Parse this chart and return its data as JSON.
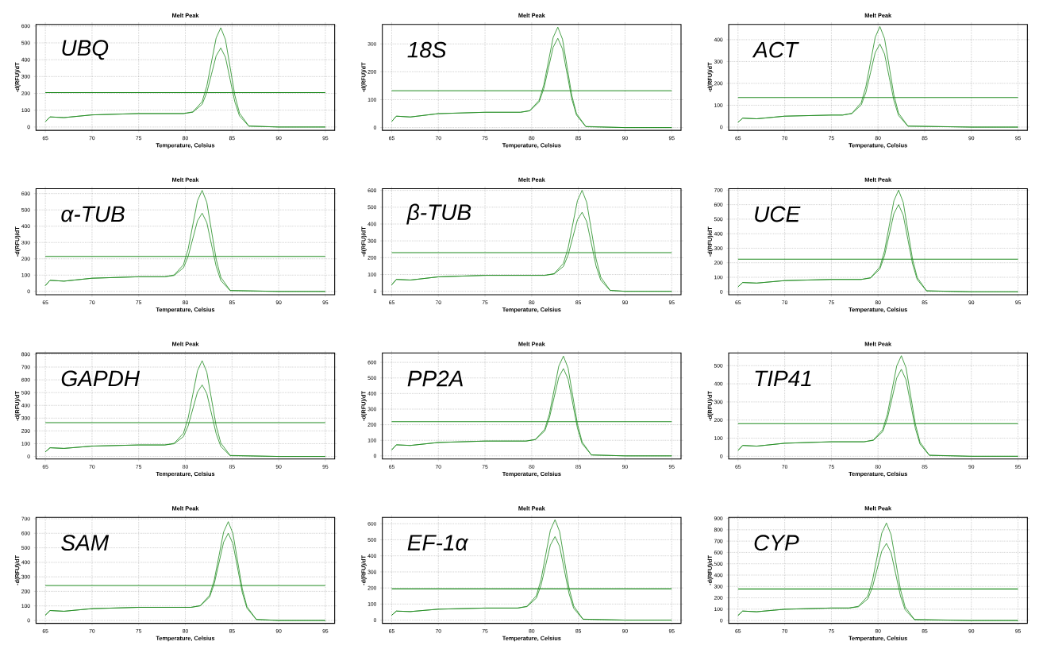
{
  "chart_data": [
    {
      "type": "line",
      "title": "Melt Peak",
      "xlabel": "Temperature, Celsius",
      "ylabel": "-d(RFU)/dT",
      "annotations": [
        "UBQ"
      ],
      "x": [
        65,
        65.5,
        67,
        70,
        75,
        79.8,
        80.8,
        81.8,
        82.3,
        82.8,
        83.3,
        83.8,
        84.3,
        84.8,
        85.3,
        85.8,
        86.8,
        90,
        95
      ],
      "xlim": [
        64,
        96
      ],
      "xticks": [
        65,
        70,
        75,
        80,
        85,
        90,
        95
      ],
      "ylim": [
        -20,
        610
      ],
      "yticks": [
        0,
        100,
        200,
        300,
        400,
        500,
        600
      ],
      "grid": true,
      "ref_lines": [
        {
          "axis": "y",
          "value": 205,
          "color": "#1e8a1e"
        }
      ],
      "series": [
        {
          "color": "#1e8a1e",
          "values": [
            32,
            60,
            56,
            72,
            80,
            80,
            90,
            151,
            243,
            386,
            529,
            590,
            519,
            354,
            189,
            83,
            6,
            0,
            0
          ]
        },
        {
          "color": "#1e8a1e",
          "values": [
            32,
            60,
            56,
            72,
            80,
            80,
            88,
            135,
            205,
            314,
            423,
            470,
            414,
            282,
            150,
            66,
            5,
            0,
            0
          ]
        }
      ]
    },
    {
      "type": "line",
      "title": "Melt Peak",
      "xlabel": "Temperature, Celsius",
      "ylabel": "-d(RFU)/dT",
      "annotations": [
        "18S"
      ],
      "x": [
        65,
        65.5,
        67,
        70,
        75,
        78.8,
        79.8,
        80.8,
        81.3,
        81.8,
        82.3,
        82.8,
        83.3,
        83.8,
        84.3,
        84.8,
        85.8,
        90,
        95
      ],
      "xlim": [
        64,
        96
      ],
      "xticks": [
        65,
        70,
        75,
        80,
        85,
        90,
        95
      ],
      "ylim": [
        -10,
        370
      ],
      "yticks": [
        0,
        100,
        200,
        300
      ],
      "grid": true,
      "ref_lines": [
        {
          "axis": "y",
          "value": 132,
          "color": "#1e8a1e"
        }
      ],
      "series": [
        {
          "color": "#1e8a1e",
          "values": [
            22,
            41,
            38,
            50,
            55,
            55,
            61,
            98,
            153,
            238,
            323,
            360,
            317,
            216,
            115,
            50,
            4,
            0,
            0
          ]
        },
        {
          "color": "#1e8a1e",
          "values": [
            22,
            41,
            38,
            50,
            55,
            55,
            60,
            92,
            140,
            214,
            288,
            320,
            282,
            192,
            102,
            45,
            3,
            0,
            0
          ]
        }
      ]
    },
    {
      "type": "line",
      "title": "Melt Peak",
      "xlabel": "Temperature, Celsius",
      "ylabel": "-d(RFU)/dT",
      "annotations": [
        "ACT"
      ],
      "x": [
        65,
        65.5,
        67,
        70,
        75,
        76.2,
        77.2,
        78.2,
        78.7,
        79.2,
        79.7,
        80.2,
        80.7,
        81.2,
        81.7,
        82.2,
        83.2,
        90,
        95
      ],
      "xlim": [
        64,
        96
      ],
      "xticks": [
        65,
        70,
        75,
        80,
        85,
        90,
        95
      ],
      "ylim": [
        -15,
        470
      ],
      "yticks": [
        0,
        100,
        200,
        300,
        400
      ],
      "grid": true,
      "ref_lines": [
        {
          "axis": "y",
          "value": 135,
          "color": "#1e8a1e"
        }
      ],
      "series": [
        {
          "color": "#1e8a1e",
          "values": [
            22,
            41,
            38,
            50,
            55,
            55,
            63,
            112,
            185,
            298,
            411,
            460,
            405,
            276,
            147,
            64,
            5,
            0,
            0
          ]
        },
        {
          "color": "#1e8a1e",
          "values": [
            22,
            41,
            38,
            50,
            55,
            55,
            62,
            101,
            159,
            250,
            341,
            380,
            334,
            228,
            122,
            53,
            4,
            0,
            0
          ]
        }
      ]
    },
    {
      "type": "line",
      "title": "Melt Peak",
      "xlabel": "Temperature, Celsius",
      "ylabel": "-d(RFU)/dT",
      "annotations": [
        "α-TUB"
      ],
      "x": [
        65,
        65.5,
        67,
        70,
        75,
        77.8,
        78.8,
        79.8,
        80.3,
        80.8,
        81.3,
        81.8,
        82.3,
        82.8,
        83.3,
        83.8,
        84.8,
        90,
        95
      ],
      "xlim": [
        64,
        96
      ],
      "xticks": [
        65,
        70,
        75,
        80,
        85,
        90,
        95
      ],
      "ylim": [
        -20,
        630
      ],
      "yticks": [
        0,
        100,
        200,
        300,
        400,
        500,
        600
      ],
      "grid": true,
      "ref_lines": [
        {
          "axis": "y",
          "value": 215,
          "color": "#1e8a1e"
        }
      ],
      "series": [
        {
          "color": "#1e8a1e",
          "values": [
            36,
            68,
            63,
            81,
            90,
            90,
            101,
            164,
            260,
            408,
            556,
            620,
            546,
            372,
            198,
            87,
            6,
            0,
            0
          ]
        },
        {
          "color": "#1e8a1e",
          "values": [
            36,
            68,
            63,
            81,
            90,
            90,
            98,
            145,
            215,
            324,
            433,
            480,
            422,
            288,
            154,
            67,
            5,
            0,
            0
          ]
        }
      ]
    },
    {
      "type": "line",
      "title": "Melt Peak",
      "xlabel": "Temperature, Celsius",
      "ylabel": "-d(RFU)/dT",
      "annotations": [
        "β-TUB"
      ],
      "x": [
        65,
        65.5,
        67,
        70,
        75,
        81.4,
        82.4,
        83.4,
        83.9,
        84.4,
        84.9,
        85.4,
        85.9,
        86.4,
        86.9,
        87.4,
        88.4,
        90,
        95
      ],
      "xlim": [
        64,
        96
      ],
      "xticks": [
        65,
        70,
        75,
        80,
        85,
        90,
        95
      ],
      "ylim": [
        -20,
        610
      ],
      "yticks": [
        0,
        100,
        200,
        300,
        400,
        500,
        600
      ],
      "grid": true,
      "ref_lines": [
        {
          "axis": "y",
          "value": 230,
          "color": "#1e8a1e"
        }
      ],
      "series": [
        {
          "color": "#1e8a1e",
          "values": [
            38,
            71,
            67,
            86,
            95,
            95,
            105,
            166,
            257,
            398,
            539,
            600,
            528,
            360,
            192,
            84,
            6,
            0,
            0
          ]
        },
        {
          "color": "#1e8a1e",
          "values": [
            38,
            71,
            67,
            86,
            95,
            95,
            103,
            148,
            215,
            320,
            425,
            470,
            414,
            282,
            150,
            66,
            5,
            0,
            0
          ]
        }
      ]
    },
    {
      "type": "line",
      "title": "Melt Peak",
      "xlabel": "Temperature, Celsius",
      "ylabel": "-d(RFU)/dT",
      "annotations": [
        "UCE"
      ],
      "x": [
        65,
        65.5,
        67,
        70,
        75,
        78.2,
        79.2,
        80.2,
        80.7,
        81.2,
        81.7,
        82.2,
        82.7,
        83.2,
        83.7,
        84.2,
        85.2,
        90,
        95
      ],
      "xlim": [
        64,
        96
      ],
      "xticks": [
        65,
        70,
        75,
        80,
        85,
        90,
        95
      ],
      "ylim": [
        -20,
        710
      ],
      "yticks": [
        0,
        100,
        200,
        300,
        400,
        500,
        600,
        700
      ],
      "grid": true,
      "ref_lines": [
        {
          "axis": "y",
          "value": 225,
          "color": "#1e8a1e"
        }
      ],
      "series": [
        {
          "color": "#1e8a1e",
          "values": [
            34,
            64,
            60,
            77,
            85,
            85,
            97,
            171,
            282,
            454,
            626,
            700,
            616,
            420,
            224,
            98,
            7,
            0,
            0
          ]
        },
        {
          "color": "#1e8a1e",
          "values": [
            34,
            64,
            60,
            77,
            85,
            85,
            95,
            157,
            250,
            394,
            538,
            600,
            528,
            360,
            192,
            84,
            6,
            0,
            0
          ]
        }
      ]
    },
    {
      "type": "line",
      "title": "Melt Peak",
      "xlabel": "Temperature, Celsius",
      "ylabel": "-d(RFU)/dT",
      "annotations": [
        "GAPDH"
      ],
      "x": [
        65,
        65.5,
        67,
        70,
        75,
        77.8,
        78.8,
        79.8,
        80.3,
        80.8,
        81.3,
        81.8,
        82.3,
        82.8,
        83.3,
        83.8,
        84.8,
        90,
        95
      ],
      "xlim": [
        64,
        96
      ],
      "xticks": [
        65,
        70,
        75,
        80,
        85,
        90,
        95
      ],
      "ylim": [
        -20,
        810
      ],
      "yticks": [
        0,
        100,
        200,
        300,
        400,
        500,
        600,
        700,
        800
      ],
      "grid": true,
      "ref_lines": [
        {
          "axis": "y",
          "value": 265,
          "color": "#1e8a1e"
        }
      ],
      "series": [
        {
          "color": "#1e8a1e",
          "values": [
            36,
            68,
            63,
            81,
            90,
            90,
            103,
            182,
            301,
            486,
            671,
            750,
            660,
            450,
            240,
            105,
            8,
            0,
            0
          ]
        },
        {
          "color": "#1e8a1e",
          "values": [
            36,
            68,
            63,
            81,
            90,
            90,
            99,
            156,
            240,
            372,
            504,
            560,
            493,
            336,
            179,
            78,
            6,
            0,
            0
          ]
        }
      ]
    },
    {
      "type": "line",
      "title": "Melt Peak",
      "xlabel": "Temperature, Celsius",
      "ylabel": "-d(RFU)/dT",
      "annotations": [
        "PP2A"
      ],
      "x": [
        65,
        65.5,
        67,
        70,
        75,
        79.4,
        80.4,
        81.4,
        81.9,
        82.4,
        82.9,
        83.4,
        83.9,
        84.4,
        84.9,
        85.4,
        86.4,
        90,
        95
      ],
      "xlim": [
        64,
        96
      ],
      "xticks": [
        65,
        70,
        75,
        80,
        85,
        90,
        95
      ],
      "ylim": [
        -20,
        660
      ],
      "yticks": [
        0,
        100,
        200,
        300,
        400,
        500,
        600
      ],
      "grid": true,
      "ref_lines": [
        {
          "axis": "y",
          "value": 220,
          "color": "#1e8a1e"
        }
      ],
      "series": [
        {
          "color": "#1e8a1e",
          "values": [
            38,
            71,
            67,
            86,
            95,
            95,
            106,
            171,
            269,
            422,
            575,
            640,
            563,
            384,
            205,
            90,
            6,
            0,
            0
          ]
        },
        {
          "color": "#1e8a1e",
          "values": [
            38,
            71,
            67,
            86,
            95,
            95,
            104,
            160,
            244,
            374,
            504,
            560,
            493,
            336,
            179,
            78,
            6,
            0,
            0
          ]
        }
      ]
    },
    {
      "type": "line",
      "title": "Melt Peak",
      "xlabel": "Temperature, Celsius",
      "ylabel": "-d(RFU)/dT",
      "annotations": [
        "TIP41"
      ],
      "x": [
        65,
        65.5,
        67,
        70,
        75,
        78.5,
        79.5,
        80.5,
        81,
        81.5,
        82,
        82.5,
        83,
        83.5,
        84,
        84.5,
        85.5,
        90,
        95
      ],
      "xlim": [
        64,
        96
      ],
      "xticks": [
        65,
        70,
        75,
        80,
        85,
        90,
        95
      ],
      "ylim": [
        -15,
        570
      ],
      "yticks": [
        0,
        100,
        200,
        300,
        400,
        500
      ],
      "grid": true,
      "ref_lines": [
        {
          "axis": "y",
          "value": 180,
          "color": "#1e8a1e"
        }
      ],
      "series": [
        {
          "color": "#1e8a1e",
          "values": [
            32,
            60,
            56,
            72,
            80,
            80,
            90,
            147,
            232,
            365,
            498,
            555,
            488,
            333,
            178,
            78,
            6,
            0,
            0
          ]
        },
        {
          "color": "#1e8a1e",
          "values": [
            32,
            60,
            56,
            72,
            80,
            80,
            88,
            136,
            208,
            320,
            432,
            480,
            422,
            288,
            154,
            67,
            5,
            0,
            0
          ]
        }
      ]
    },
    {
      "type": "line",
      "title": "Melt Peak",
      "xlabel": "Temperature, Celsius",
      "ylabel": "-d(RFU)/dT",
      "annotations": [
        "SAM"
      ],
      "x": [
        65,
        65.5,
        67,
        70,
        75,
        80.6,
        81.6,
        82.6,
        83.1,
        83.6,
        84.1,
        84.6,
        85.1,
        85.6,
        86.1,
        86.6,
        87.6,
        90,
        95
      ],
      "xlim": [
        64,
        96
      ],
      "xticks": [
        65,
        70,
        75,
        80,
        85,
        90,
        95
      ],
      "ylim": [
        -20,
        710
      ],
      "yticks": [
        0,
        100,
        200,
        300,
        400,
        500,
        600,
        700
      ],
      "grid": true,
      "ref_lines": [
        {
          "axis": "y",
          "value": 240,
          "color": "#1e8a1e"
        }
      ],
      "series": [
        {
          "color": "#1e8a1e",
          "values": [
            36,
            68,
            63,
            81,
            90,
            90,
            102,
            173,
            279,
            444,
            609,
            680,
            598,
            408,
            218,
            95,
            7,
            0,
            0
          ]
        },
        {
          "color": "#1e8a1e",
          "values": [
            36,
            68,
            63,
            81,
            90,
            90,
            100,
            161,
            253,
            396,
            539,
            600,
            528,
            360,
            192,
            84,
            6,
            0,
            0
          ]
        }
      ]
    },
    {
      "type": "line",
      "title": "Melt Peak",
      "xlabel": "Temperature, Celsius",
      "ylabel": "-d(RFU)/dT",
      "annotations": [
        "EF-1α"
      ],
      "x": [
        65,
        65.5,
        67,
        70,
        75,
        78.5,
        79.5,
        80.5,
        81,
        81.5,
        82,
        82.5,
        83,
        83.5,
        84,
        84.5,
        85.5,
        90,
        95
      ],
      "xlim": [
        64,
        96
      ],
      "xticks": [
        65,
        70,
        75,
        80,
        85,
        90,
        95
      ],
      "ylim": [
        -20,
        640
      ],
      "yticks": [
        0,
        100,
        200,
        300,
        400,
        500,
        600
      ],
      "grid": true,
      "ref_lines": [
        {
          "axis": "y",
          "value": 195,
          "color": "#1e8a1e"
        }
      ],
      "series": [
        {
          "color": "#1e8a1e",
          "values": [
            30,
            56,
            53,
            68,
            75,
            75,
            86,
            152,
            251,
            405,
            559,
            625,
            550,
            375,
            200,
            88,
            6,
            0,
            0
          ]
        },
        {
          "color": "#1e8a1e",
          "values": [
            30,
            56,
            53,
            68,
            75,
            75,
            84,
            137,
            217,
            342,
            467,
            520,
            458,
            312,
            166,
            73,
            5,
            0,
            0
          ]
        }
      ]
    },
    {
      "type": "line",
      "title": "Melt Peak",
      "xlabel": "Temperature, Celsius",
      "ylabel": "-d(RFU)/dT",
      "annotations": [
        "CYP"
      ],
      "x": [
        65,
        65.5,
        67,
        70,
        75,
        76.9,
        77.9,
        78.9,
        79.4,
        79.9,
        80.4,
        80.9,
        81.4,
        81.9,
        82.4,
        82.9,
        83.9,
        90,
        95
      ],
      "xlim": [
        64,
        96
      ],
      "xticks": [
        65,
        70,
        75,
        80,
        85,
        90,
        95
      ],
      "ylim": [
        -25,
        910
      ],
      "yticks": [
        0,
        100,
        200,
        300,
        400,
        500,
        600,
        700,
        800,
        900
      ],
      "grid": true,
      "ref_lines": [
        {
          "axis": "y",
          "value": 278,
          "color": "#1e8a1e"
        }
      ],
      "series": [
        {
          "color": "#1e8a1e",
          "values": [
            44,
            83,
            77,
            99,
            110,
            110,
            125,
            215,
            350,
            560,
            770,
            860,
            757,
            516,
            275,
            120,
            9,
            0,
            0
          ]
        },
        {
          "color": "#1e8a1e",
          "values": [
            44,
            83,
            77,
            99,
            110,
            110,
            121,
            190,
            292,
            452,
            612,
            680,
            598,
            408,
            218,
            95,
            7,
            0,
            0
          ]
        }
      ]
    }
  ]
}
